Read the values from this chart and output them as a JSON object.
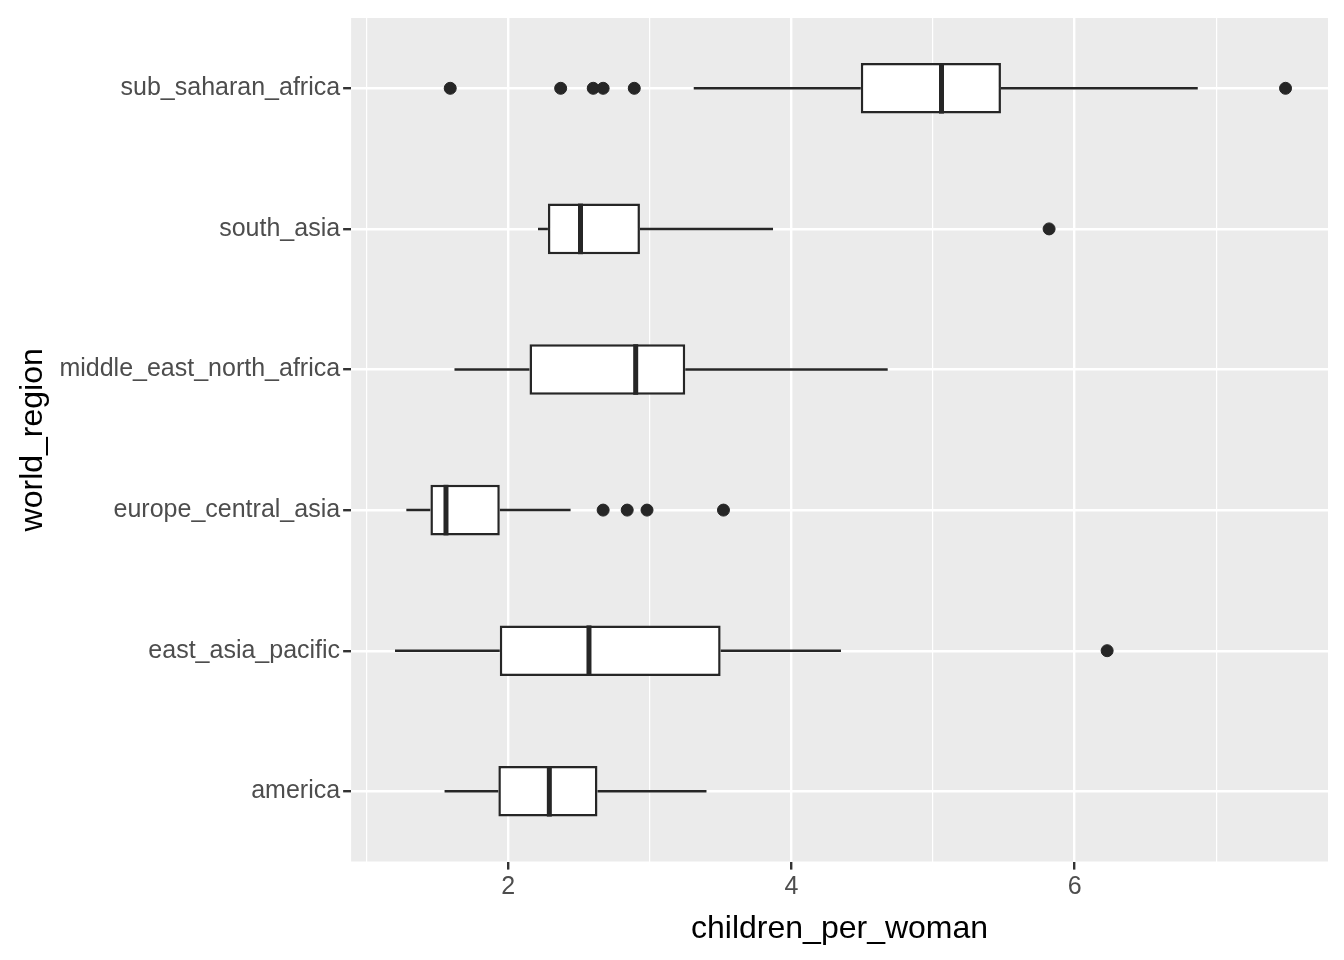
{
  "chart_data": {
    "type": "box",
    "orientation": "horizontal",
    "xlabel": "children_per_woman",
    "ylabel": "world_region",
    "categories": [
      "sub_saharan_africa",
      "south_asia",
      "middle_east_north_africa",
      "europe_central_asia",
      "east_asia_pacific",
      "america"
    ],
    "boxes": [
      {
        "low": 3.31,
        "q1": 4.49,
        "median": 5.06,
        "q3": 5.48,
        "high": 6.87,
        "outliers": [
          1.59,
          2.37,
          2.6,
          2.67,
          2.89,
          7.49
        ]
      },
      {
        "low": 2.21,
        "q1": 2.28,
        "median": 2.51,
        "q3": 2.93,
        "high": 3.87,
        "outliers": [
          5.82
        ]
      },
      {
        "low": 1.62,
        "q1": 2.15,
        "median": 2.9,
        "q3": 3.25,
        "high": 4.68
      },
      {
        "low": 1.28,
        "q1": 1.45,
        "median": 1.56,
        "q3": 1.94,
        "high": 2.44,
        "outliers": [
          2.67,
          2.84,
          2.98,
          3.52
        ]
      },
      {
        "low": 1.2,
        "q1": 1.94,
        "median": 2.57,
        "q3": 3.5,
        "high": 4.35,
        "outliers": [
          6.23
        ]
      },
      {
        "low": 1.55,
        "q1": 1.93,
        "median": 2.29,
        "q3": 2.63,
        "high": 3.4
      }
    ],
    "color": "#262626",
    "xlim": [
      0.89,
      7.79
    ],
    "xticks": [
      {
        "value": 1,
        "label": null
      },
      2,
      {
        "value": 3,
        "label": null
      },
      4,
      {
        "value": 5,
        "label": null
      },
      6,
      {
        "value": 7,
        "label": null
      }
    ],
    "grid": true,
    "legend": false
  }
}
